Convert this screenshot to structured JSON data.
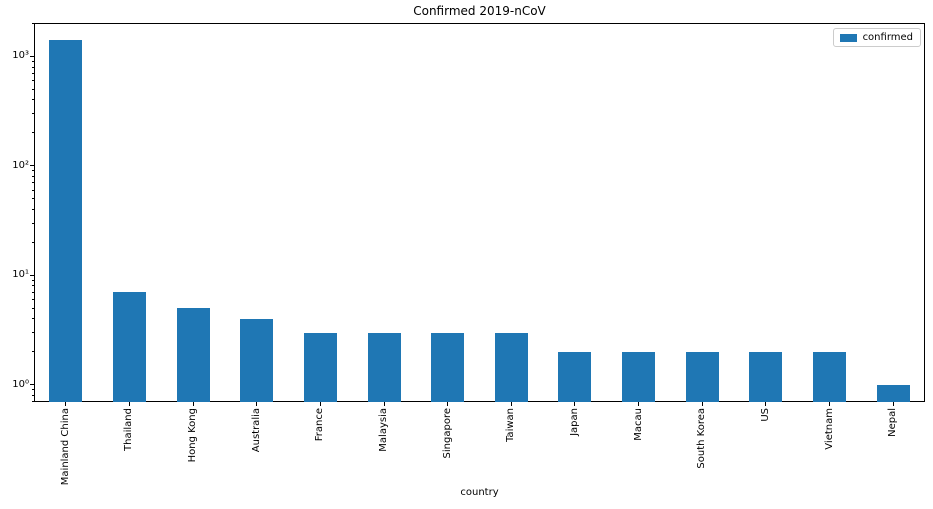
{
  "chart_data": {
    "type": "bar",
    "title": "Confirmed 2019-nCoV",
    "xlabel": "country",
    "ylabel": "",
    "yscale": "log",
    "grid": false,
    "legend_position": "upper right",
    "series_name": "confirmed",
    "bar_color": "#1f77b4",
    "categories": [
      "Mainland China",
      "Thailand",
      "Hong Kong",
      "Australia",
      "France",
      "Malaysia",
      "Singapore",
      "Taiwan",
      "Japan",
      "Macau",
      "South Korea",
      "US",
      "Vietnam",
      "Nepal"
    ],
    "values": [
      1406,
      7,
      5,
      4,
      3,
      3,
      3,
      3,
      2,
      2,
      2,
      2,
      2,
      1
    ],
    "ylim_approx": [
      0.7,
      2000
    ],
    "ytick_values": [
      1,
      10,
      100,
      1000
    ],
    "ytick_labels": [
      "10⁰",
      "10¹",
      "10²",
      "10³"
    ]
  }
}
